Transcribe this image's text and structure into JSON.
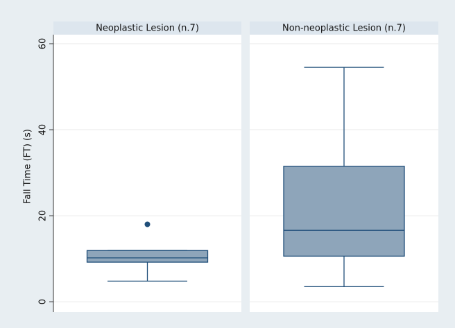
{
  "chart_data": {
    "type": "box",
    "ylabel": "Fall Time (FT) (s)",
    "ylim": [
      -2.4,
      62.1
    ],
    "yticks": [
      0,
      20,
      40,
      60
    ],
    "grid": true,
    "color": "#8ea5ba",
    "line_color": "#1f4e79",
    "panels": [
      {
        "title": "Neoplastic Lesion (n.7)",
        "whisker_low": 4.8,
        "q1": 9.2,
        "median": 10.2,
        "q3": 11.9,
        "whisker_high": 11.9,
        "outliers": [
          18
        ]
      },
      {
        "title": "Non-neoplastic Lesion (n.7)",
        "whisker_low": 3.5,
        "q1": 10.6,
        "median": 16.6,
        "q3": 31.5,
        "whisker_high": 54.5,
        "outliers": []
      }
    ]
  }
}
